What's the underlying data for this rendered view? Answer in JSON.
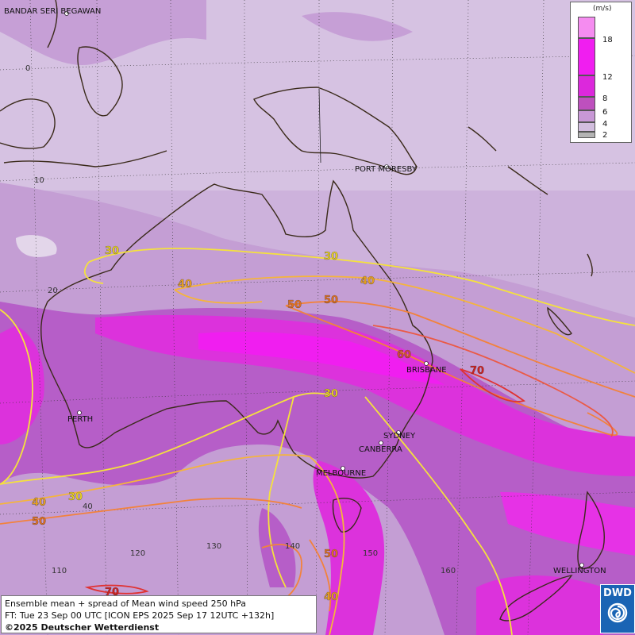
{
  "map": {
    "cities": [
      {
        "name": "BANDAR SERI BEGAWAN"
      },
      {
        "name": "PORT MORESBY"
      },
      {
        "name": "PERTH"
      },
      {
        "name": "BRISBANE"
      },
      {
        "name": "SYDNEY"
      },
      {
        "name": "CANBERRA"
      },
      {
        "name": "MELBOURNE"
      },
      {
        "name": "WELLINGTON"
      }
    ],
    "latitude_labels": [
      "0",
      "10",
      "20"
    ],
    "longitude_labels": [
      "40",
      "110",
      "120",
      "130",
      "140",
      "150",
      "160"
    ],
    "contour_labels": [
      "30",
      "40",
      "50",
      "50",
      "30",
      "40",
      "60",
      "70",
      "30",
      "40",
      "30",
      "50",
      "50",
      "40",
      "70"
    ],
    "contour_colors": {
      "30": "#f5e23c",
      "40": "#f5b43c",
      "50": "#f2823c",
      "60": "#ea5a46",
      "70": "#e03232"
    }
  },
  "legend": {
    "unit": "(m/s)",
    "ticks": [
      "18",
      "12",
      "8",
      "6",
      "4",
      "2"
    ],
    "colors": [
      "#f58cf0",
      "#f01ef0",
      "#dc28dc",
      "#be50be",
      "#c898d6",
      "#d2bede",
      "#b4b4b4"
    ]
  },
  "caption": {
    "line1": "Ensemble mean + spread of Mean wind speed 250 hPa",
    "line2": "FT: Tue 23 Sep 00 UTC [ICON EPS 2025 Sep 17 12UTC +132h]",
    "line3": "©2025 Deutscher Wetterdienst"
  },
  "logo": {
    "text": "DWD"
  }
}
